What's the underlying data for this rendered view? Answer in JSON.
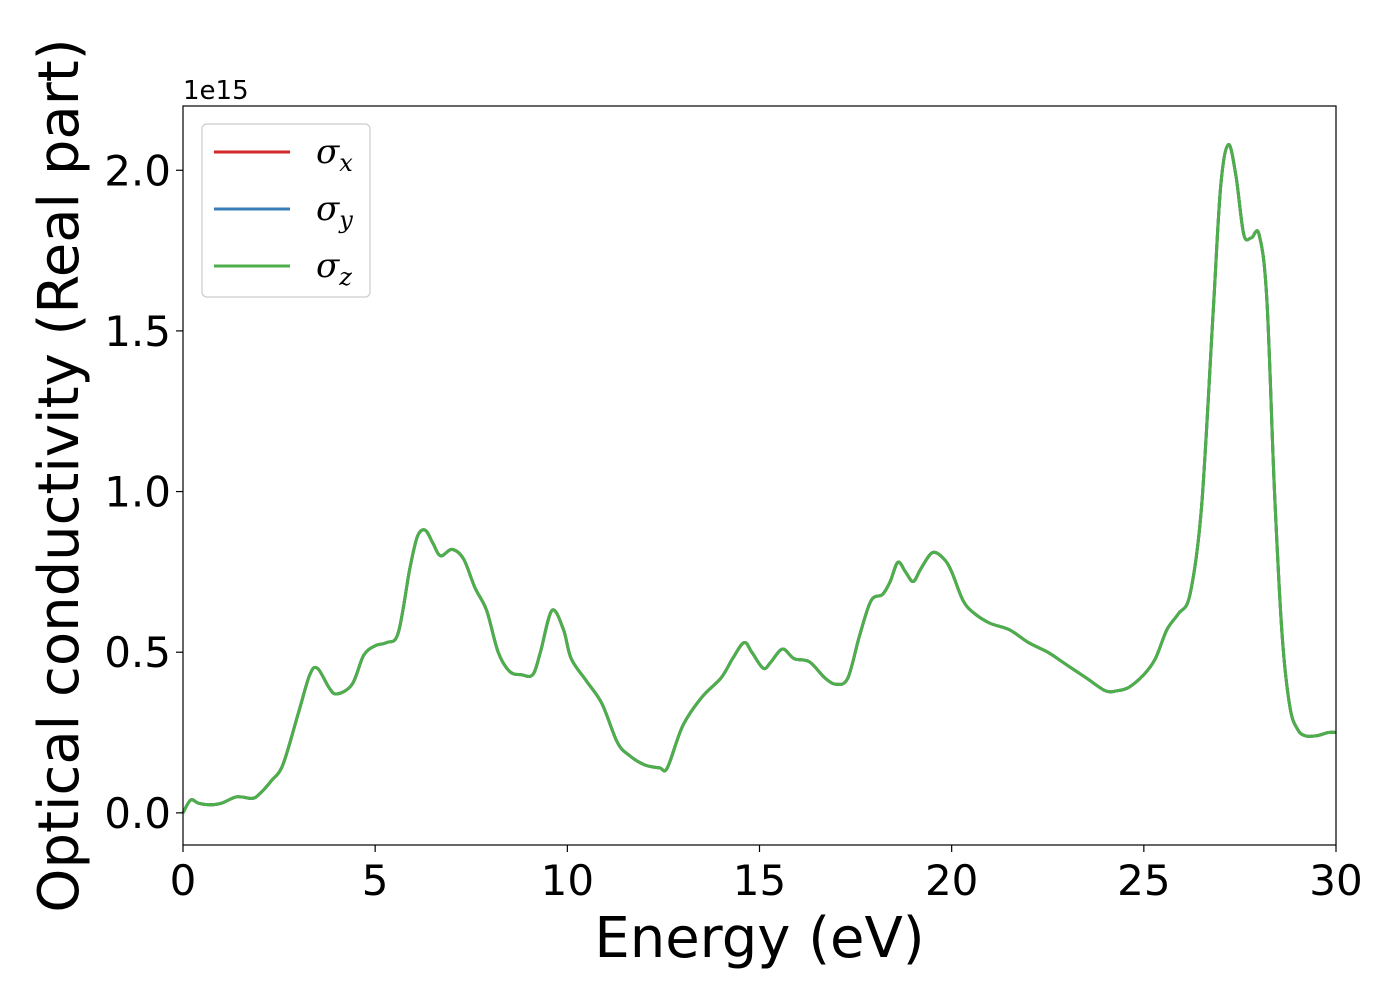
{
  "chart_data": {
    "type": "line",
    "title": "",
    "xlabel": "Energy (eV)",
    "ylabel": "Optical conductivity (Real part)",
    "y_offset_label": "1e15",
    "xlim": [
      0,
      30
    ],
    "ylim": [
      -0.1,
      2.2
    ],
    "y_multiplier": 1000000000000000.0,
    "x_ticks": [
      0,
      5,
      10,
      15,
      20,
      25,
      30
    ],
    "x_tick_labels": [
      "0",
      "5",
      "10",
      "15",
      "20",
      "25",
      "30"
    ],
    "y_ticks": [
      0.0,
      0.5,
      1.0,
      1.5,
      2.0
    ],
    "y_tick_labels": [
      "0.0",
      "0.5",
      "1.0",
      "1.5",
      "2.0"
    ],
    "grid": false,
    "legend_position": "top-left",
    "x": [
      0,
      0.2,
      0.4,
      0.7,
      1.0,
      1.4,
      1.8,
      2.0,
      2.3,
      2.6,
      3.0,
      3.3,
      3.5,
      3.8,
      4.0,
      4.4,
      4.7,
      5.0,
      5.3,
      5.6,
      5.9,
      6.1,
      6.3,
      6.5,
      6.7,
      7.0,
      7.3,
      7.6,
      7.9,
      8.2,
      8.5,
      8.8,
      9.1,
      9.3,
      9.6,
      9.9,
      10.1,
      10.5,
      10.9,
      11.3,
      11.6,
      12.0,
      12.4,
      12.6,
      13.0,
      13.5,
      14.0,
      14.3,
      14.6,
      14.8,
      15.1,
      15.3,
      15.6,
      15.9,
      16.3,
      16.7,
      17.0,
      17.3,
      17.6,
      17.9,
      18.2,
      18.4,
      18.6,
      18.8,
      19.0,
      19.2,
      19.5,
      19.8,
      20.0,
      20.3,
      20.6,
      21.0,
      21.5,
      22.0,
      22.5,
      23.0,
      23.5,
      24.0,
      24.3,
      24.6,
      25.0,
      25.3,
      25.6,
      25.9,
      26.2,
      26.5,
      26.8,
      27.0,
      27.2,
      27.4,
      27.6,
      27.8,
      28.0,
      28.2,
      28.4,
      28.6,
      28.8,
      29.0,
      29.2,
      29.5,
      29.8,
      30.0
    ],
    "series": [
      {
        "name": "σx",
        "color": "#d62728",
        "values": [
          0.0,
          0.04,
          0.03,
          0.025,
          0.03,
          0.05,
          0.045,
          0.06,
          0.1,
          0.15,
          0.31,
          0.43,
          0.45,
          0.39,
          0.37,
          0.4,
          0.49,
          0.52,
          0.53,
          0.56,
          0.76,
          0.86,
          0.88,
          0.84,
          0.8,
          0.82,
          0.79,
          0.7,
          0.63,
          0.5,
          0.44,
          0.43,
          0.43,
          0.5,
          0.63,
          0.57,
          0.48,
          0.41,
          0.34,
          0.22,
          0.18,
          0.15,
          0.14,
          0.14,
          0.27,
          0.36,
          0.42,
          0.48,
          0.53,
          0.5,
          0.45,
          0.47,
          0.51,
          0.48,
          0.47,
          0.42,
          0.4,
          0.42,
          0.55,
          0.66,
          0.68,
          0.72,
          0.78,
          0.75,
          0.72,
          0.76,
          0.81,
          0.79,
          0.75,
          0.66,
          0.62,
          0.59,
          0.57,
          0.53,
          0.5,
          0.46,
          0.42,
          0.38,
          0.38,
          0.39,
          0.43,
          0.48,
          0.57,
          0.62,
          0.68,
          0.95,
          1.55,
          1.95,
          2.08,
          1.98,
          1.8,
          1.79,
          1.8,
          1.6,
          1.0,
          0.55,
          0.33,
          0.26,
          0.24,
          0.24,
          0.25,
          0.25
        ]
      },
      {
        "name": "σy",
        "color": "#377eb8",
        "values": [
          0.0,
          0.04,
          0.03,
          0.025,
          0.03,
          0.05,
          0.045,
          0.06,
          0.1,
          0.15,
          0.31,
          0.43,
          0.45,
          0.39,
          0.37,
          0.4,
          0.49,
          0.52,
          0.53,
          0.56,
          0.76,
          0.86,
          0.88,
          0.84,
          0.8,
          0.82,
          0.79,
          0.7,
          0.63,
          0.5,
          0.44,
          0.43,
          0.43,
          0.5,
          0.63,
          0.57,
          0.48,
          0.41,
          0.34,
          0.22,
          0.18,
          0.15,
          0.14,
          0.14,
          0.27,
          0.36,
          0.42,
          0.48,
          0.53,
          0.5,
          0.45,
          0.47,
          0.51,
          0.48,
          0.47,
          0.42,
          0.4,
          0.42,
          0.55,
          0.66,
          0.68,
          0.72,
          0.78,
          0.75,
          0.72,
          0.76,
          0.81,
          0.79,
          0.75,
          0.66,
          0.62,
          0.59,
          0.57,
          0.53,
          0.5,
          0.46,
          0.42,
          0.38,
          0.38,
          0.39,
          0.43,
          0.48,
          0.57,
          0.62,
          0.68,
          0.95,
          1.55,
          1.95,
          2.08,
          1.98,
          1.8,
          1.79,
          1.8,
          1.6,
          1.0,
          0.55,
          0.33,
          0.26,
          0.24,
          0.24,
          0.25,
          0.25
        ]
      },
      {
        "name": "σz",
        "color": "#4daf4a",
        "values": [
          0.0,
          0.04,
          0.03,
          0.025,
          0.03,
          0.05,
          0.045,
          0.06,
          0.1,
          0.15,
          0.31,
          0.43,
          0.45,
          0.39,
          0.37,
          0.4,
          0.49,
          0.52,
          0.53,
          0.56,
          0.76,
          0.86,
          0.88,
          0.84,
          0.8,
          0.82,
          0.79,
          0.7,
          0.63,
          0.5,
          0.44,
          0.43,
          0.43,
          0.5,
          0.63,
          0.57,
          0.48,
          0.41,
          0.34,
          0.22,
          0.18,
          0.15,
          0.14,
          0.14,
          0.27,
          0.36,
          0.42,
          0.48,
          0.53,
          0.5,
          0.45,
          0.47,
          0.51,
          0.48,
          0.47,
          0.42,
          0.4,
          0.42,
          0.55,
          0.66,
          0.68,
          0.72,
          0.78,
          0.75,
          0.72,
          0.76,
          0.81,
          0.79,
          0.75,
          0.66,
          0.62,
          0.59,
          0.57,
          0.53,
          0.5,
          0.46,
          0.42,
          0.38,
          0.38,
          0.39,
          0.43,
          0.48,
          0.57,
          0.62,
          0.68,
          0.95,
          1.55,
          1.95,
          2.08,
          1.98,
          1.8,
          1.79,
          1.8,
          1.6,
          1.0,
          0.55,
          0.33,
          0.26,
          0.24,
          0.24,
          0.25,
          0.25
        ]
      }
    ],
    "legend": [
      {
        "symbol": "σ",
        "sub": "x",
        "color": "#d62728"
      },
      {
        "symbol": "σ",
        "sub": "y",
        "color": "#377eb8"
      },
      {
        "symbol": "σ",
        "sub": "z",
        "color": "#4daf4a"
      }
    ]
  }
}
